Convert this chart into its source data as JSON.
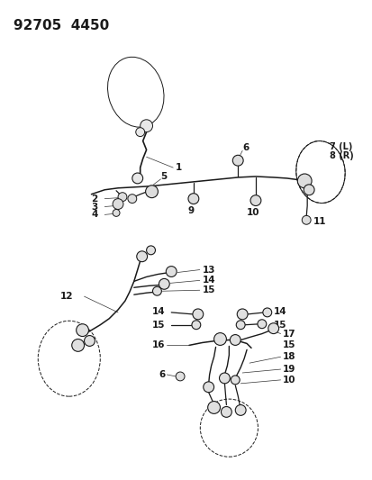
{
  "title": "92705  4450",
  "bg_color": "#ffffff",
  "line_color": "#1a1a1a",
  "title_fontsize": 11,
  "label_fontsize": 7.5,
  "figsize": [
    4.14,
    5.33
  ],
  "dpi": 100
}
